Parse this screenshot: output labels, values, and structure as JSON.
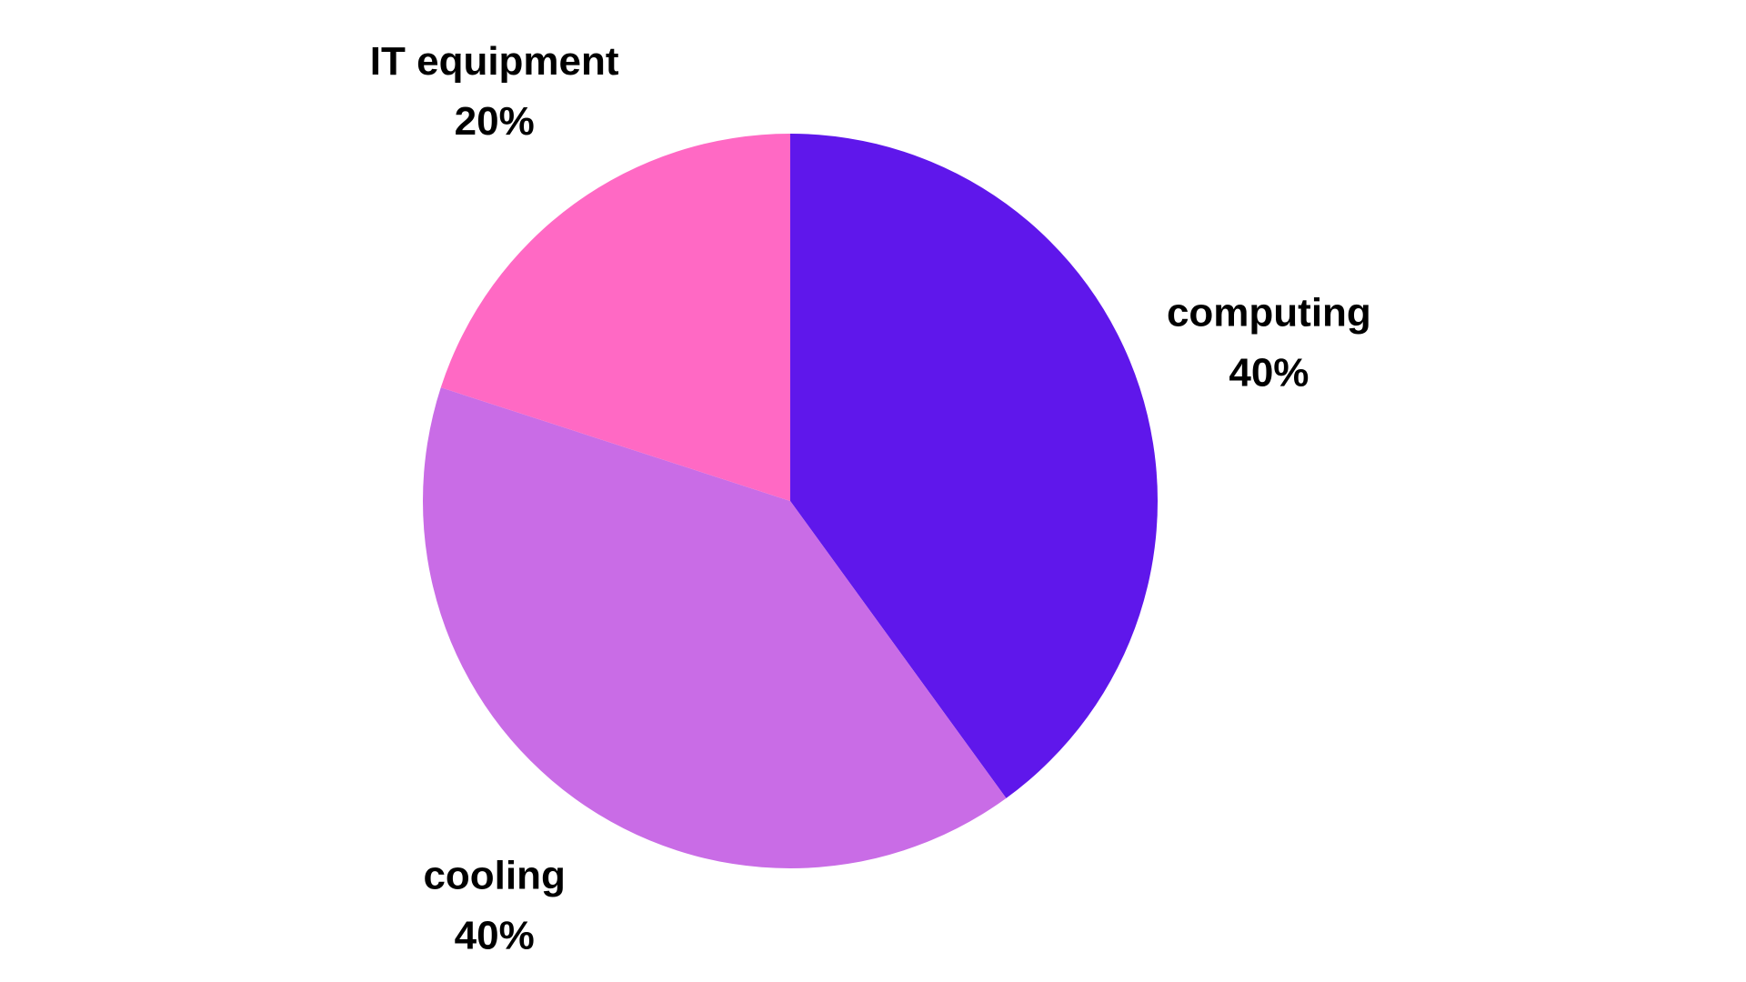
{
  "chart_data": {
    "type": "pie",
    "categories": [
      "computing",
      "cooling",
      "IT equipment"
    ],
    "values": [
      40,
      40,
      20
    ],
    "value_labels": [
      "40%",
      "40%",
      "20%"
    ],
    "colors": [
      "#5f17eb",
      "#c96ce6",
      "#ff69c4"
    ]
  }
}
